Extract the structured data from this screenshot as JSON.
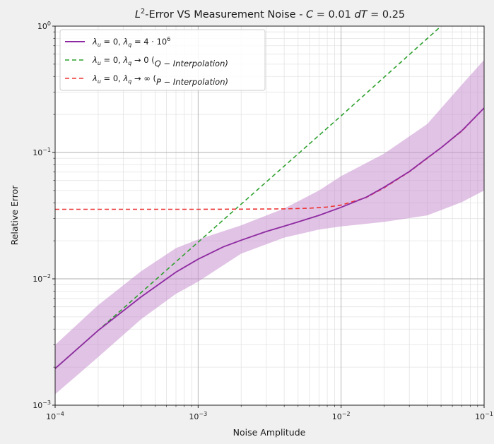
{
  "chart_data": {
    "type": "line",
    "title": {
      "part1": "L",
      "part1_sup": "2",
      "part2": "-Error  VS  Measurement Noise   -   ",
      "c_var": "C",
      "c_val": " = 0.01   ",
      "dt_var": "dT",
      "dt_val": " = 0.25"
    },
    "xlabel": "Noise Amplitude",
    "ylabel": "Relative Error",
    "xscale": "log",
    "yscale": "log",
    "xlim": [
      0.0001,
      0.1
    ],
    "ylim": [
      0.001,
      1
    ],
    "grid": true,
    "legend_position": "top-left",
    "x_ticks": [
      {
        "value": 0.0001,
        "base": "10",
        "exp": "−4"
      },
      {
        "value": 0.001,
        "base": "10",
        "exp": "−3"
      },
      {
        "value": 0.01,
        "base": "10",
        "exp": "−2"
      },
      {
        "value": 0.1,
        "base": "10",
        "exp": "−1"
      }
    ],
    "y_ticks": [
      {
        "value": 0.001,
        "base": "10",
        "exp": "−3"
      },
      {
        "value": 0.01,
        "base": "10",
        "exp": "−2"
      },
      {
        "value": 0.1,
        "base": "10",
        "exp": "−1"
      },
      {
        "value": 1,
        "base": "10",
        "exp": "0"
      }
    ],
    "band": {
      "color": "#c991cf",
      "x": [
        0.0001,
        0.0002,
        0.0004,
        0.0007,
        0.001,
        0.002,
        0.004,
        0.007,
        0.01,
        0.02,
        0.04,
        0.07,
        0.1
      ],
      "lower": [
        0.00122,
        0.0024,
        0.0048,
        0.0076,
        0.0095,
        0.0158,
        0.0212,
        0.0245,
        0.026,
        0.0282,
        0.0318,
        0.0405,
        0.05
      ],
      "upper": [
        0.003,
        0.0062,
        0.0115,
        0.0175,
        0.0205,
        0.0265,
        0.036,
        0.05,
        0.065,
        0.098,
        0.168,
        0.345,
        0.54
      ]
    },
    "series": [
      {
        "legend": {
          "l1": "λ",
          "l1_sub": "u",
          "l1_eq": " = 0,    ",
          "l2": "λ",
          "l2_sub": "q",
          "l2_eq": " = 4 · 10",
          "l2_sup": "6",
          "l2_post": ""
        },
        "color": "#8e2aa1",
        "style": "solid",
        "x": [
          0.0001,
          0.0002,
          0.0004,
          0.0007,
          0.001,
          0.0015,
          0.002,
          0.003,
          0.004,
          0.005,
          0.007,
          0.01,
          0.015,
          0.02,
          0.03,
          0.04,
          0.05,
          0.07,
          0.1
        ],
        "y": [
          0.00195,
          0.0039,
          0.0072,
          0.0113,
          0.0143,
          0.0179,
          0.0202,
          0.0237,
          0.0261,
          0.0282,
          0.0318,
          0.0368,
          0.0443,
          0.0531,
          0.0707,
          0.0904,
          0.109,
          0.149,
          0.225
        ]
      },
      {
        "legend": {
          "l1": "λ",
          "l1_sub": "u",
          "l1_eq": " = 0,    ",
          "l2": "λ",
          "l2_sub": "q",
          "l2_eq": " → 0   (",
          "l2_sup": "",
          "l2_post": "Q − Interpolation)"
        },
        "color": "#2ca02c",
        "style": "dashed",
        "x": [
          0.0001,
          0.001,
          0.01,
          0.05
        ],
        "y": [
          0.00195,
          0.0195,
          0.195,
          1.0
        ]
      },
      {
        "legend": {
          "l1": "λ",
          "l1_sub": "u",
          "l1_eq": " = 0,    ",
          "l2": "λ",
          "l2_sub": "q",
          "l2_eq": " → ∞   (",
          "l2_sup": "",
          "l2_post": "P − Interpolation)"
        },
        "color": "#ee3333",
        "style": "dashed",
        "x": [
          0.0001,
          0.001,
          0.002,
          0.004,
          0.006,
          0.008,
          0.01,
          0.015,
          0.02,
          0.03,
          0.04,
          0.05,
          0.07,
          0.1
        ],
        "y": [
          0.0355,
          0.0355,
          0.0356,
          0.0358,
          0.0362,
          0.037,
          0.0383,
          0.044,
          0.0525,
          0.0703,
          0.0899,
          0.109,
          0.148,
          0.225
        ]
      }
    ]
  }
}
